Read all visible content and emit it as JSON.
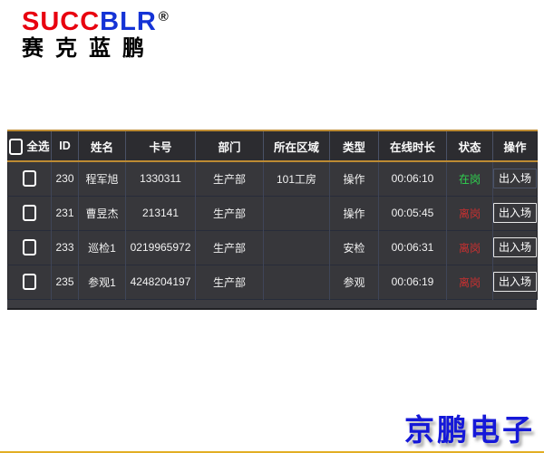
{
  "logo": {
    "brand_red": "SUCC",
    "brand_blue": "BLR",
    "registered": "®",
    "subtitle": "赛克蓝鹏"
  },
  "table": {
    "columns": [
      "全选",
      "ID",
      "姓名",
      "卡号",
      "部门",
      "所在区域",
      "类型",
      "在线时长",
      "状态",
      "操作"
    ],
    "rows": [
      {
        "id": "230",
        "name": "程军旭",
        "card": "1330311",
        "dept": "生产部",
        "area": "101工房",
        "type": "操作",
        "duration": "00:06:10",
        "status": "在岗",
        "status_color": "#2fd24f",
        "action": "出入场"
      },
      {
        "id": "231",
        "name": "曹昱杰",
        "card": "213141",
        "dept": "生产部",
        "area": "",
        "type": "操作",
        "duration": "00:05:45",
        "status": "离岗",
        "status_color": "#c93030",
        "action": "出入场"
      },
      {
        "id": "233",
        "name": "巡检1",
        "card": "0219965972",
        "dept": "生产部",
        "area": "",
        "type": "安检",
        "duration": "00:06:31",
        "status": "离岗",
        "status_color": "#c93030",
        "action": "出入场"
      },
      {
        "id": "235",
        "name": "参观1",
        "card": "4248204197",
        "dept": "生产部",
        "area": "",
        "type": "参观",
        "duration": "00:06:19",
        "status": "离岗",
        "status_color": "#c93030",
        "action": "出入场"
      }
    ]
  },
  "footer": {
    "watermark": "京鹏电子"
  },
  "colors": {
    "accent_gold": "#bd8b33",
    "table_bg": "#37373b",
    "header_bg": "#2c2c30",
    "status_on_green": "#2fd24f",
    "status_off_red": "#c93030",
    "brand_red": "#e8000f",
    "brand_blue": "#1433d6",
    "watermark_blue": "#1518d8"
  }
}
